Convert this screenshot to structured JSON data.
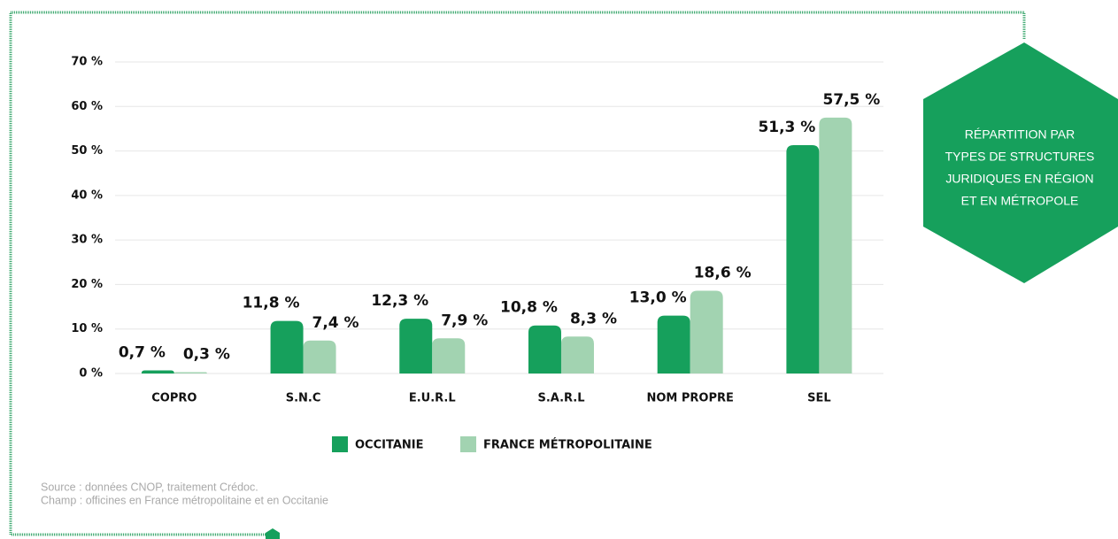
{
  "chart_data": {
    "type": "bar",
    "categories": [
      "COPRO",
      "S.N.C",
      "E.U.R.L",
      "S.A.R.L",
      "NOM PROPRE",
      "SEL"
    ],
    "series": [
      {
        "name": "OCCITANIE",
        "color": "#16a05c",
        "values": [
          0.7,
          11.8,
          12.3,
          10.8,
          13.0,
          51.3
        ],
        "value_labels": [
          "0,7 %",
          "11,8 %",
          "12,3 %",
          "10,8 %",
          "13,0 %",
          "51,3 %"
        ]
      },
      {
        "name": "FRANCE MÉTROPOLITAINE",
        "color": "#a2d3b1",
        "values": [
          0.3,
          7.4,
          7.9,
          8.3,
          18.6,
          57.5
        ],
        "value_labels": [
          "0,3 %",
          "7,4 %",
          "7,9 %",
          "8,3 %",
          "18,6 %",
          "57,5 %"
        ]
      }
    ],
    "ylim": [
      0,
      70
    ],
    "yticks": [
      {
        "value": 0,
        "label": "0 %"
      },
      {
        "value": 10,
        "label": "10 %"
      },
      {
        "value": 20,
        "label": "20 %"
      },
      {
        "value": 30,
        "label": "30 %"
      },
      {
        "value": 40,
        "label": "40 %"
      },
      {
        "value": 50,
        "label": "50 %"
      },
      {
        "value": 60,
        "label": "60 %"
      },
      {
        "value": 70,
        "label": "70 %"
      }
    ],
    "grid": true,
    "side_title": [
      "RÉPARTITION PAR",
      "TYPES DE STRUCTURES",
      "JURIDIQUES EN RÉGION",
      "ET EN MÉTROPOLE"
    ],
    "notes": [
      "Source : données CNOP, traitement Crédoc.",
      "Champ : officines en France métropolitaine et en Occitanie"
    ]
  }
}
